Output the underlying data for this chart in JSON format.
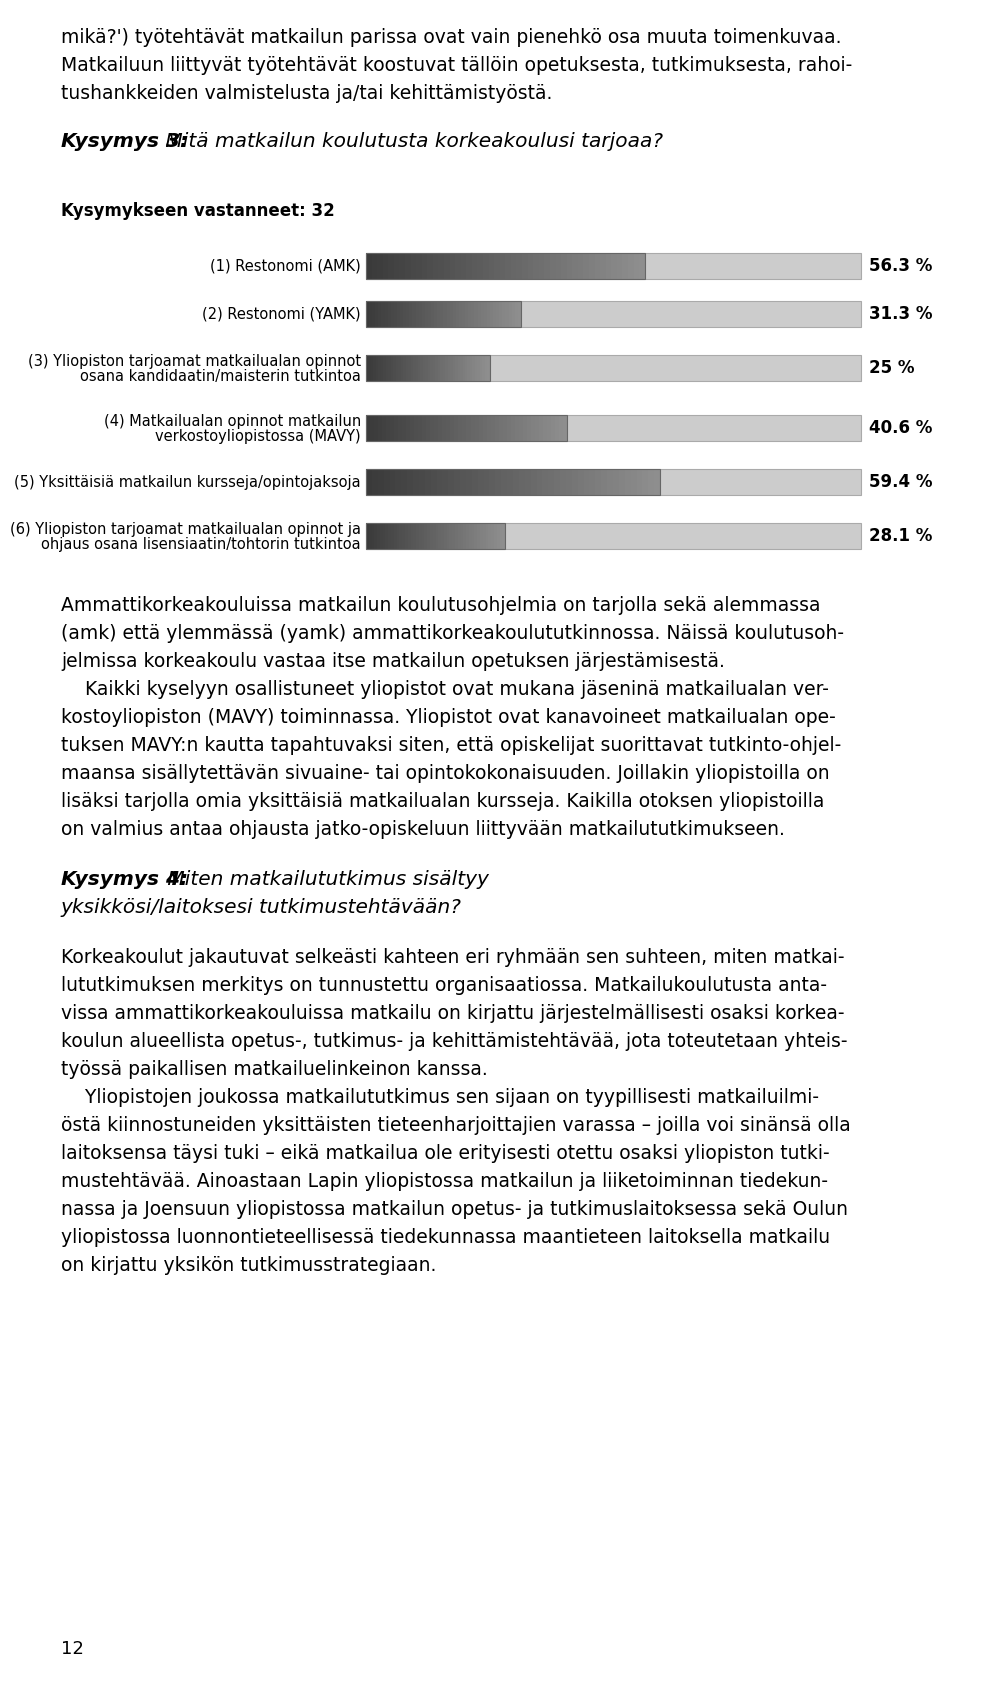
{
  "fig_width": 9.6,
  "fig_height": 16.64,
  "background_color": "#ffffff",
  "text_color": "#000000",
  "bar_light_color": "#cccccc",
  "bar_dark_start": "#444444",
  "bar_dark_end": "#888888",
  "bar_border_color": "#888888",
  "bar_max": 100.0,
  "categories": [
    "(1) Restonomi (AMK)",
    "(2) Restonomi (YAMK)",
    "(3) Yliopiston tarjoamat matkailualan opinnot\nosana kandidaatin/maisterin tutkintoa",
    "(4) Matkailualan opinnot matkailun\nverkostoyliopistossa (MAVY)",
    "(5) Yksittäisiä matkailun kursseja/opintojaksoja",
    "(6) Yliopiston tarjoamat matkailualan opinnot ja\nohjaus osana lisensiaatin/tohtorin tutkintoa"
  ],
  "values": [
    56.3,
    31.3,
    25.0,
    40.6,
    59.4,
    28.1
  ],
  "labels": [
    "56.3 %",
    "31.3 %",
    "25 %",
    "40.6 %",
    "59.4 %",
    "28.1 %"
  ],
  "para1": "mikä?') työtehtävät matkailun parissa ovat vain pienehkö osa muuta toimenkuvaa.\nMatkailuun liittyvät työtehtävät koostuvat tällöin opetuksesta, tutkimuksesta, rahoi-\ntushankkeiden valmistelusta ja/tai kehittämistyöstä.",
  "heading3_bold": "Kysymys 3:",
  "heading3_rest": " Mitä matkailun koulutusta korkeakoulusi tarjoaa?",
  "chart_title": "Kysymykseen vastanneet: 32",
  "para_after_chart": "Ammattikorkeakouluissa matkailun koulutusohjelmia on tarjolla sekä alemmassa\n(amk) että ylemmässä (yamk) ammattikorkeakoulututkinnossa. Näissä koulutusoh-\njelmissa korkeakoulu vastaa itse matkailun opetuksen järjestämisestä.\n    Kaikki kyselyyn osallistuneet yliopistot ovat mukana jäseninä matkailualan ver-\nkostoyliopiston (MAVY) toiminnassa. Yliopistot ovat kanavoineet matkailualan ope-\ntuksen MAVY:n kautta tapahtuvaksi siten, että opiskelijat suorittavat tutkinto-ohjel-\nmaansa sisällytettävän sivuaine- tai opintokokonaisuuden. Joillakin yliopistoilla on\nlisäksi tarjolla omia yksittäisiä matkailualan kursseja. Kaikilla otoksen yliopistoilla\non valmius antaa ohjausta jatko-opiskeluun liittyvään matkailututkimukseen.",
  "heading4_bold": "Kysymys 4:",
  "heading4_rest": " Miten matkailututkimus sisältyy\nyksikkösi/laitoksesi tutkimustehtävään?",
  "para_final": "Korkeakoulut jakautuvat selkeästi kahteen eri ryhmään sen suhteen, miten matkai-\nlututkimuksen merkitys on tunnustettu organisaatiossa. Matkailukoulutusta anta-\nvissa ammattikorkeakouluissa matkailu on kirjattu järjestelmällisesti osaksi korkea-\nkoulun alueellista opetus-, tutkimus- ja kehittämistehtävää, jota toteutetaan yhteis-\ntyössä paikallisen matkailuelinkeinon kanssa.\n    Yliopistojen joukossa matkailututkimus sen sijaan on tyypillisesti matkailuilmi-\nöstä kiinnostuneiden yksittäisten tieteenharjoittajien varassa – joilla voi sinänsä olla\nlaitoksensa täysi tuki – eikä matkailua ole erityisesti otettu osaksi yliopiston tutki-\nmustehtävää. Ainoastaan Lapin yliopistossa matkailun ja liiketoiminnan tiedekun-\nnassa ja Joensuun yliopistossa matkailun opetus- ja tutkimuslaitoksessa sekä Oulun\nyliopistossa luonnontieteellisessä tiedekunnassa maantieteen laitoksella matkailu\non kirjattu yksikön tutkimusstrategiaan.",
  "page_number": "12"
}
